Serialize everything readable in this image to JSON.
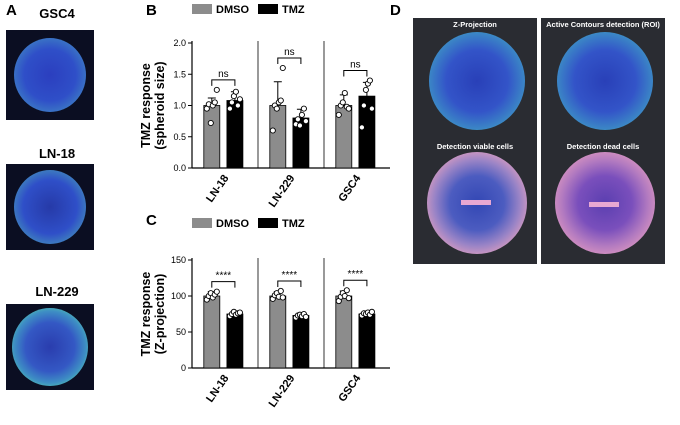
{
  "panels": {
    "a": {
      "letter": "A",
      "labels": [
        "GSC4",
        "LN-18",
        "LN-229"
      ]
    },
    "b": {
      "letter": "B"
    },
    "c": {
      "letter": "C"
    },
    "d": {
      "letter": "D",
      "titles": [
        "Z-Projection",
        "Active Contours detection (ROI)",
        "Detection viable cells",
        "Detection dead cells"
      ]
    }
  },
  "colors": {
    "dmso": "#8c8c8c",
    "tmz": "#000000",
    "micro_bg": "#0b0e22",
    "green": "#4cc98a",
    "blue": "#2f4fc8",
    "pink": "#e2a2c4"
  },
  "chart_data": [
    {
      "id": "B",
      "type": "bar",
      "ylabel": "TMZ response\n(spheroid size)",
      "ylabel_lines": [
        "TMZ response",
        "(spheroid size)"
      ],
      "ylim": [
        0,
        2.0
      ],
      "yticks": [
        "0.0",
        "0.5",
        "1.0",
        "1.5",
        "2.0"
      ],
      "ytick_values": [
        0,
        0.5,
        1.0,
        1.5,
        2.0
      ],
      "categories": [
        "LN-18",
        "LN-229",
        "GSC4"
      ],
      "legend": [
        "DMSO",
        "TMZ"
      ],
      "series": [
        {
          "name": "DMSO",
          "values": [
            1.0,
            1.0,
            1.0
          ],
          "err": [
            0.12,
            0.38,
            0.17
          ],
          "points": [
            [
              0.95,
              1.02,
              0.72,
              1.0,
              1.05,
              1.25
            ],
            [
              0.6,
              1.0,
              0.95,
              1.05,
              1.08,
              1.6
            ],
            [
              0.85,
              1.0,
              1.05,
              1.2,
              0.98,
              0.95
            ]
          ]
        },
        {
          "name": "TMZ",
          "values": [
            1.08,
            0.8,
            1.15
          ],
          "err": [
            0.14,
            0.14,
            0.22
          ],
          "points": [
            [
              0.95,
              1.05,
              1.15,
              1.22,
              1.0,
              1.1
            ],
            [
              0.7,
              0.78,
              0.68,
              0.85,
              0.95,
              0.75
            ],
            [
              0.65,
              1.0,
              1.25,
              1.35,
              1.4,
              0.95
            ]
          ]
        }
      ],
      "significance": [
        "ns",
        "ns",
        "ns"
      ]
    },
    {
      "id": "C",
      "type": "bar",
      "ylabel": "TMZ response\n(Z-projection)",
      "ylabel_lines": [
        "TMZ response",
        "(Z-projection)"
      ],
      "ylim": [
        0,
        150
      ],
      "yticks": [
        "0",
        "50",
        "100",
        "150"
      ],
      "ytick_values": [
        0,
        50,
        100,
        150
      ],
      "categories": [
        "LN-18",
        "LN-229",
        "GSC4"
      ],
      "legend": [
        "DMSO",
        "TMZ"
      ],
      "series": [
        {
          "name": "DMSO",
          "values": [
            100,
            100,
            100
          ],
          "err": [
            6,
            6,
            7
          ],
          "points": [
            [
              95,
              100,
              104,
              98,
              102,
              106
            ],
            [
              96,
              101,
              104,
              99,
              107,
              98
            ],
            [
              93,
              99,
              104,
              100,
              108,
              97
            ]
          ]
        },
        {
          "name": "TMZ",
          "values": [
            75,
            73,
            75
          ],
          "err": [
            4,
            3,
            4
          ],
          "points": [
            [
              72,
              75,
              78,
              74,
              76,
              77
            ],
            [
              70,
              73,
              74,
              72,
              75,
              71
            ],
            [
              73,
              76,
              75,
              77,
              74,
              78
            ]
          ]
        }
      ],
      "significance": [
        "****",
        "****",
        "****"
      ]
    }
  ]
}
